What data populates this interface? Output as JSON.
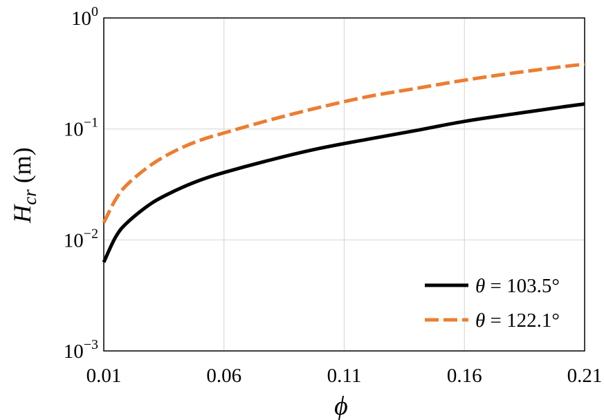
{
  "chart_data": {
    "type": "line",
    "x_axis": {
      "label_symbol": "ϕ",
      "range": [
        0.01,
        0.21
      ],
      "ticks": [
        "0.01",
        "0.06",
        "0.11",
        "0.16",
        "0.21"
      ],
      "tick_values": [
        0.01,
        0.06,
        0.11,
        0.16,
        0.21
      ]
    },
    "y_axis": {
      "label_symbol": "H",
      "label_subscript": "cr",
      "label_unit": " (m)",
      "scale": "log",
      "range": [
        0.001,
        1
      ],
      "ticks": [
        {
          "base": "10",
          "exp": "−3",
          "value": 0.001
        },
        {
          "base": "10",
          "exp": "−2",
          "value": 0.01
        },
        {
          "base": "10",
          "exp": "−1",
          "value": 0.1
        },
        {
          "base": "10",
          "exp": "0",
          "value": 1
        }
      ]
    },
    "grid": true,
    "legend_position": "bottom-right",
    "series": [
      {
        "name": "θ = 103.5°",
        "name_symbol": "θ",
        "name_rest": " = 103.5°",
        "color": "#000000",
        "dash": "solid",
        "x": [
          0.01,
          0.015,
          0.02,
          0.03,
          0.04,
          0.05,
          0.06,
          0.08,
          0.1,
          0.12,
          0.14,
          0.16,
          0.18,
          0.2,
          0.21
        ],
        "y": [
          0.0063,
          0.0107,
          0.0145,
          0.0215,
          0.028,
          0.0345,
          0.0405,
          0.053,
          0.067,
          0.081,
          0.097,
          0.117,
          0.136,
          0.157,
          0.168
        ]
      },
      {
        "name": "θ = 122.1°",
        "name_symbol": "θ",
        "name_rest": " = 122.1°",
        "color": "#ED7D31",
        "dash": "dashed",
        "x": [
          0.01,
          0.015,
          0.02,
          0.03,
          0.04,
          0.05,
          0.06,
          0.08,
          0.1,
          0.12,
          0.14,
          0.16,
          0.18,
          0.2,
          0.21
        ],
        "y": [
          0.0143,
          0.0233,
          0.032,
          0.048,
          0.064,
          0.079,
          0.092,
          0.122,
          0.157,
          0.196,
          0.232,
          0.275,
          0.318,
          0.362,
          0.383
        ]
      }
    ]
  }
}
